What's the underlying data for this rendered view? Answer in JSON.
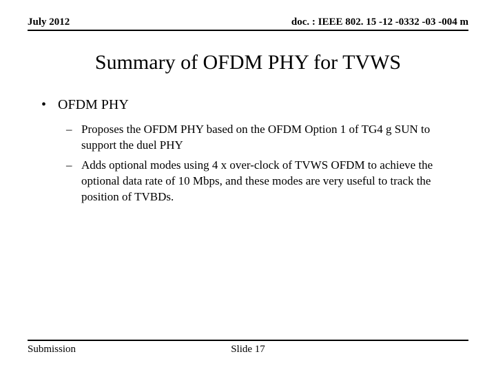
{
  "header": {
    "left": "July 2012",
    "right": "doc. : IEEE 802. 15 -12 -0332 -03 -004 m"
  },
  "title": "Summary of OFDM PHY for TVWS",
  "bullets": {
    "l1": "OFDM PHY",
    "l2a": "Proposes the OFDM PHY based on the OFDM Option 1 of TG4 g SUN to support the duel PHY",
    "l2b": "Adds optional modes using 4 x over-clock of  TVWS OFDM  to achieve the optional data rate of 10 Mbps, and these modes are very useful to track the position of TVBDs."
  },
  "footer": {
    "left": "Submission",
    "center": "Slide 17"
  }
}
